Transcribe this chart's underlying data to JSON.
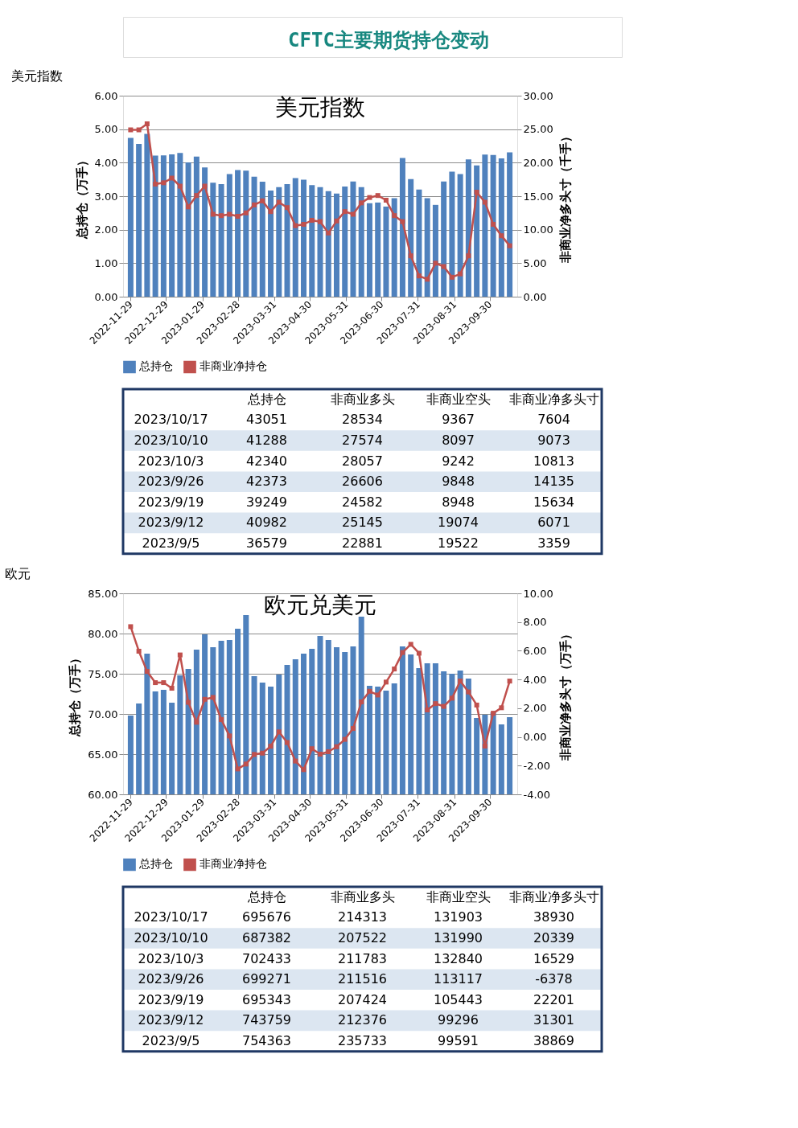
{
  "chart_data": [
    {
      "type": "other",
      "title": "CFTC主要期货持仓变动"
    },
    {
      "type": "bar",
      "subtitle": "美元指数",
      "title": "美元指数",
      "ylabel": "总持仓（万手）",
      "y2label": "非商业净多头寸（千手）",
      "x": [
        "2022-11-29",
        "2022-12-06",
        "2022-12-13",
        "2022-12-20",
        "2022-12-27",
        "2023-01-03",
        "2023-01-10",
        "2023-01-17",
        "2023-01-24",
        "2023-01-31",
        "2023-02-07",
        "2023-02-14",
        "2023-02-21",
        "2023-02-28",
        "2023-03-07",
        "2023-03-14",
        "2023-03-21",
        "2023-03-28",
        "2023-04-04",
        "2023-04-11",
        "2023-04-18",
        "2023-04-25",
        "2023-05-02",
        "2023-05-09",
        "2023-05-16",
        "2023-05-23",
        "2023-05-30",
        "2023-06-06",
        "2023-06-13",
        "2023-06-20",
        "2023-06-27",
        "2023-07-04",
        "2023-07-11",
        "2023-07-18",
        "2023-07-25",
        "2023-08-01",
        "2023-08-08",
        "2023-08-15",
        "2023-08-22",
        "2023-08-29",
        "2023-09-05",
        "2023-09-12",
        "2023-09-19",
        "2023-09-26",
        "2023-10-03",
        "2023-10-10",
        "2023-10-17"
      ],
      "xlim": [
        "2022-11-26",
        "2023-10-20"
      ],
      "xticks": [
        "2022-11-29",
        "2022-12-29",
        "2023-01-29",
        "2023-02-28",
        "2023-03-31",
        "2023-04-30",
        "2023-05-31",
        "2023-06-30",
        "2023-07-31",
        "2023-08-31",
        "2023-09-30"
      ],
      "ylim": [
        0,
        6
      ],
      "yticks": [
        {
          "value": 0,
          "label": "0.00"
        },
        {
          "value": 1,
          "label": "1.00"
        },
        {
          "value": 2,
          "label": "2.00"
        },
        {
          "value": 3,
          "label": "3.00"
        },
        {
          "value": 4,
          "label": "4.00"
        },
        {
          "value": 5,
          "label": "5.00"
        },
        {
          "value": 6,
          "label": "6.00"
        }
      ],
      "y2lim": [
        0,
        30
      ],
      "y2ticks": [
        {
          "value": 0,
          "label": "0.00"
        },
        {
          "value": 5,
          "label": "5.00"
        },
        {
          "value": 10,
          "label": "10.00"
        },
        {
          "value": 15,
          "label": "15.00"
        },
        {
          "value": 20,
          "label": "20.00"
        },
        {
          "value": 25,
          "label": "25.00"
        },
        {
          "value": 30,
          "label": "30.00"
        }
      ],
      "grid": "y",
      "legend": "bottom",
      "marker": "square",
      "series": [
        {
          "name": "总持仓",
          "type": "bar",
          "color": "#4f81bd",
          "values": [
            4.74,
            4.56,
            4.86,
            4.21,
            4.22,
            4.25,
            4.29,
            4.01,
            4.18,
            3.86,
            3.4,
            3.36,
            3.66,
            3.78,
            3.76,
            3.58,
            3.43,
            3.17,
            3.27,
            3.36,
            3.54,
            3.49,
            3.33,
            3.27,
            3.15,
            3.08,
            3.29,
            3.44,
            3.27,
            2.79,
            2.81,
            2.69,
            2.94,
            4.14,
            3.51,
            3.2,
            2.94,
            2.74,
            3.44,
            3.73,
            3.66,
            4.1,
            3.92,
            4.24,
            4.23,
            4.13,
            4.31
          ]
        },
        {
          "name": "非商业净持仓",
          "type": "line",
          "axis": "y2",
          "color": "#c0504d",
          "values": [
            24.9,
            24.9,
            25.8,
            16.8,
            17.0,
            17.7,
            16.5,
            13.4,
            15.1,
            16.5,
            12.3,
            12.1,
            12.3,
            12.0,
            12.5,
            13.7,
            14.3,
            12.7,
            14.1,
            13.3,
            10.6,
            10.8,
            11.4,
            11.2,
            9.5,
            11.3,
            12.7,
            12.3,
            14.0,
            14.8,
            15.1,
            14.4,
            12.1,
            11.2,
            6.1,
            3.1,
            2.6,
            5.0,
            4.5,
            2.9,
            3.4,
            6.1,
            15.6,
            14.1,
            10.8,
            9.1,
            7.6
          ]
        }
      ]
    },
    {
      "type": "other",
      "categories": [
        null,
        "总持仓",
        "非商业多头",
        "非商业空头",
        "非商业净多头寸"
      ],
      "y_categories": [
        "2023/10/17",
        "2023/10/10",
        "2023/10/3",
        "2023/9/26",
        "2023/9/19",
        "2023/9/12",
        "2023/9/5"
      ],
      "cell_labels": [
        [
          "43051",
          "28534",
          "9367",
          "7604"
        ],
        [
          "41288",
          "27574",
          "8097",
          "9073"
        ],
        [
          "42340",
          "28057",
          "9242",
          "10813"
        ],
        [
          "42373",
          "26606",
          "9848",
          "14135"
        ],
        [
          "39249",
          "24582",
          "8948",
          "15634"
        ],
        [
          "40982",
          "25145",
          "19074",
          "6071"
        ],
        [
          "36579",
          "22881",
          "19522",
          "3359"
        ]
      ]
    },
    {
      "type": "bar",
      "subtitle": "欧元",
      "title": "欧元兑美元",
      "ylabel": "总持仓（万手）",
      "y2label": "非商业净多头寸（万手）",
      "x": [
        "2022-11-29",
        "2022-12-06",
        "2022-12-13",
        "2022-12-20",
        "2022-12-27",
        "2023-01-03",
        "2023-01-10",
        "2023-01-17",
        "2023-01-24",
        "2023-01-31",
        "2023-02-07",
        "2023-02-14",
        "2023-02-21",
        "2023-02-28",
        "2023-03-07",
        "2023-03-14",
        "2023-03-21",
        "2023-03-28",
        "2023-04-04",
        "2023-04-11",
        "2023-04-18",
        "2023-04-25",
        "2023-05-02",
        "2023-05-09",
        "2023-05-16",
        "2023-05-23",
        "2023-05-30",
        "2023-06-06",
        "2023-06-13",
        "2023-06-20",
        "2023-06-27",
        "2023-07-04",
        "2023-07-11",
        "2023-07-18",
        "2023-07-25",
        "2023-08-01",
        "2023-08-08",
        "2023-08-15",
        "2023-08-22",
        "2023-08-29",
        "2023-09-05",
        "2023-09-12",
        "2023-09-19",
        "2023-09-26",
        "2023-10-03",
        "2023-10-10",
        "2023-10-17"
      ],
      "xlim": [
        "2022-11-26",
        "2023-10-20"
      ],
      "xticks": [
        "2022-11-29",
        "2022-12-29",
        "2023-01-29",
        "2023-02-28",
        "2023-03-31",
        "2023-04-30",
        "2023-05-31",
        "2023-06-30",
        "2023-07-31",
        "2023-08-31",
        "2023-09-30"
      ],
      "ylim": [
        60,
        85
      ],
      "yticks": [
        {
          "value": 60,
          "label": "60.00"
        },
        {
          "value": 65,
          "label": "65.00"
        },
        {
          "value": 70,
          "label": "70.00"
        },
        {
          "value": 75,
          "label": "75.00"
        },
        {
          "value": 80,
          "label": "80.00"
        },
        {
          "value": 85,
          "label": "85.00"
        }
      ],
      "y2lim": [
        -4,
        10
      ],
      "y2ticks": [
        {
          "value": -4,
          "label": "-4.00"
        },
        {
          "value": -2,
          "label": "-2.00"
        },
        {
          "value": 0,
          "label": "0.00"
        },
        {
          "value": 2,
          "label": "2.00"
        },
        {
          "value": 4,
          "label": "4.00"
        },
        {
          "value": 6,
          "label": "6.00"
        },
        {
          "value": 8,
          "label": "8.00"
        },
        {
          "value": 10,
          "label": "10.00"
        }
      ],
      "grid": "y",
      "legend": "bottom",
      "marker": "square",
      "series": [
        {
          "name": "总持仓",
          "type": "bar",
          "color": "#4f81bd",
          "values": [
            69.8,
            71.3,
            77.5,
            72.8,
            73.0,
            71.4,
            74.8,
            75.6,
            78.0,
            79.9,
            78.3,
            79.1,
            79.2,
            80.6,
            82.3,
            74.7,
            73.9,
            73.4,
            74.9,
            76.1,
            76.8,
            77.5,
            78.1,
            79.7,
            79.2,
            78.3,
            77.7,
            78.4,
            82.1,
            73.5,
            73.4,
            72.9,
            73.8,
            78.4,
            77.4,
            75.7,
            76.3,
            76.3,
            75.3,
            75.0,
            75.4,
            74.4,
            69.5,
            69.9,
            70.2,
            68.7,
            69.6
          ]
        },
        {
          "name": "非商业净持仓",
          "type": "line",
          "axis": "y2",
          "color": "#c0504d",
          "values": [
            7.68,
            5.97,
            4.56,
            3.78,
            3.78,
            3.39,
            5.71,
            2.41,
            1.02,
            2.62,
            2.75,
            1.21,
            0.07,
            -2.23,
            -1.89,
            -1.22,
            -1.13,
            -0.65,
            0.35,
            -0.39,
            -1.68,
            -2.28,
            -0.82,
            -1.2,
            -1.03,
            -0.68,
            -0.17,
            0.59,
            2.44,
            3.18,
            2.92,
            3.82,
            4.73,
            5.88,
            6.45,
            5.83,
            1.88,
            2.32,
            2.13,
            2.7,
            3.89,
            3.13,
            2.22,
            -0.64,
            1.65,
            2.03,
            3.89
          ]
        }
      ]
    },
    {
      "type": "other",
      "categories": [
        null,
        "总持仓",
        "非商业多头",
        "非商业空头",
        "非商业净多头寸"
      ],
      "y_categories": [
        "2023/10/17",
        "2023/10/10",
        "2023/10/3",
        "2023/9/26",
        "2023/9/19",
        "2023/9/12",
        "2023/9/5"
      ],
      "cell_labels": [
        [
          "695676",
          "214313",
          "131903",
          "38930"
        ],
        [
          "687382",
          "207522",
          "131990",
          "20339"
        ],
        [
          "702433",
          "211783",
          "132840",
          "16529"
        ],
        [
          "699271",
          "211516",
          "113117",
          "-6378"
        ],
        [
          "695343",
          "207424",
          "105443",
          "22201"
        ],
        [
          "743759",
          "212376",
          "99296",
          "31301"
        ],
        [
          "754363",
          "235733",
          "99591",
          "38869"
        ]
      ]
    }
  ]
}
